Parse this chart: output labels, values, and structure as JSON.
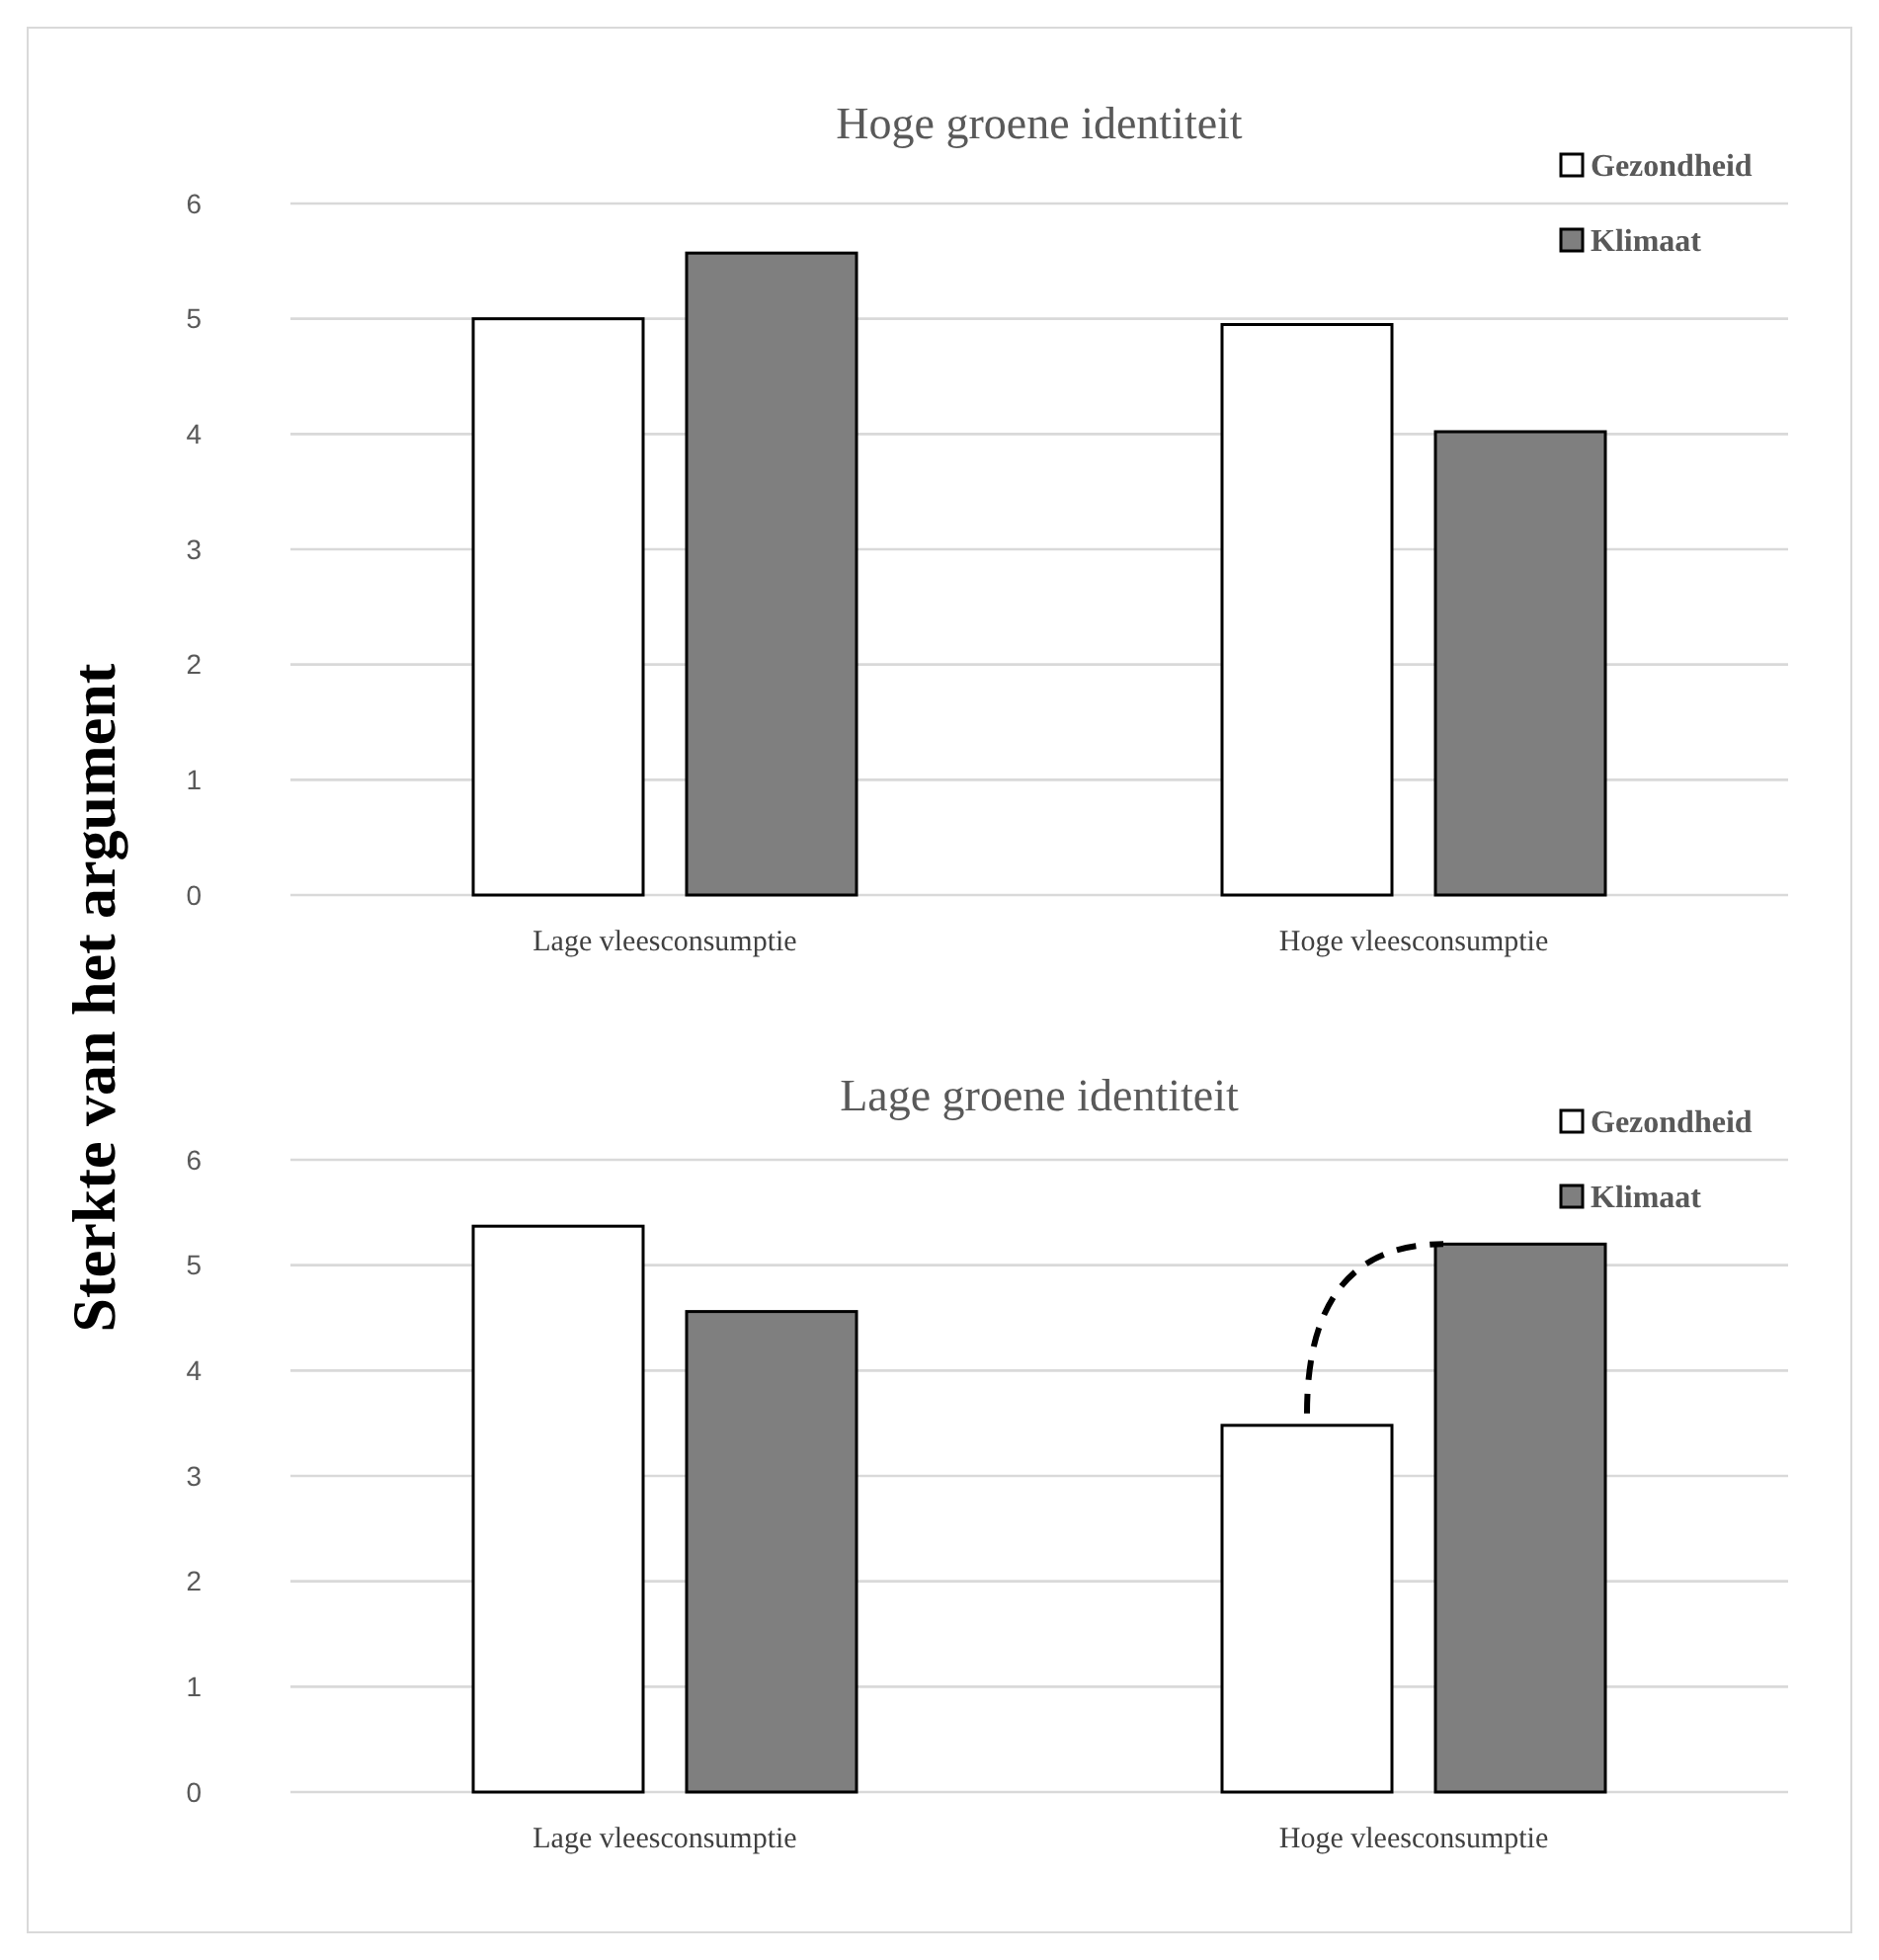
{
  "chart_data": [
    {
      "type": "bar",
      "title": "Hoge groene identiteit",
      "ylabel": "Sterkte van het argument",
      "categories": [
        "Lage vleesconsumptie",
        "Hoge vleesconsumptie"
      ],
      "series": [
        {
          "name": "Gezondheid",
          "color": "#ffffff",
          "values": [
            5.0,
            4.95
          ]
        },
        {
          "name": "Klimaat",
          "color": "#7f7f7f",
          "values": [
            5.57,
            4.02
          ]
        }
      ],
      "ylim": [
        0,
        6
      ],
      "yticks": [
        0,
        1,
        2,
        3,
        4,
        5,
        6
      ],
      "grid": "y",
      "legend": "top right"
    },
    {
      "type": "bar",
      "title": "Lage groene identiteit",
      "categories": [
        "Lage vleesconsumptie",
        "Hoge vleesconsumptie"
      ],
      "series": [
        {
          "name": "Gezondheid",
          "color": "#ffffff",
          "values": [
            5.37,
            3.48
          ]
        },
        {
          "name": "Klimaat",
          "color": "#7f7f7f",
          "values": [
            4.56,
            5.2
          ]
        }
      ],
      "ylim": [
        0,
        6
      ],
      "yticks": [
        0,
        1,
        2,
        3,
        4,
        5,
        6
      ],
      "grid": "y",
      "legend": "top right"
    }
  ]
}
